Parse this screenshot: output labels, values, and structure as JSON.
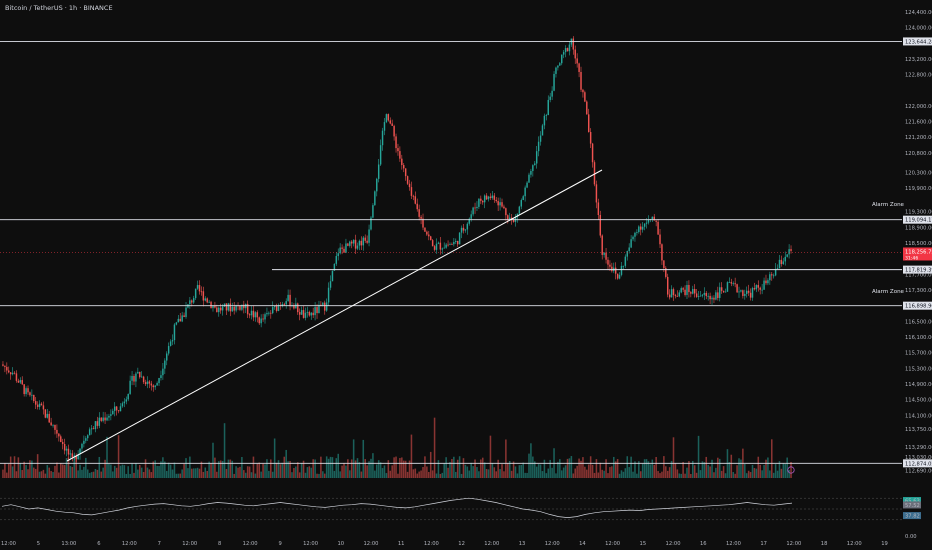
{
  "header": {
    "symbol": "Bitcoin / TetherUS",
    "sep1": " · ",
    "interval": "1h",
    "sep2": " · ",
    "exchange": "BINANCE"
  },
  "colors": {
    "background": "#0e0e0e",
    "up": "#26a69a",
    "down": "#ef5350",
    "level_line": "#e0e3eb",
    "rsi_line": "#d1d4dc",
    "current_price_badge": "#f23645"
  },
  "annotations": {
    "alarm_zone_upper": "Alarm Zone",
    "alarm_zone_lower": "Alarm Zone"
  },
  "chart_data": {
    "type": "candlestick",
    "price_axis": {
      "ticks": [
        "124,400.00",
        "124,000.00",
        "123,200.00",
        "122,800.00",
        "122,000.00",
        "121,600.00",
        "121,200.00",
        "120,800.00",
        "120,300.00",
        "119,900.00",
        "119,300.00",
        "118,900.00",
        "118,500.00",
        "117,700.00",
        "117,300.00",
        "116,500.00",
        "116,100.00",
        "115,700.00",
        "115,300.00",
        "114,900.00",
        "114,500.00",
        "114,100.00",
        "113,750.00",
        "113,290.00",
        "113,030.00",
        "112,690.00"
      ],
      "range": [
        112500,
        124600
      ]
    },
    "time_axis": {
      "ticks": [
        "12:00",
        "5",
        "13:00",
        "6",
        "12:00",
        "7",
        "12:00",
        "8",
        "12:00",
        "9",
        "12:00",
        "10",
        "12:00",
        "11",
        "12:00",
        "12",
        "12:00",
        "13",
        "12:00",
        "14",
        "12:00",
        "15",
        "12:00",
        "16",
        "12:00",
        "17",
        "12:00",
        "18",
        "12:00",
        "19"
      ]
    },
    "levels": [
      {
        "price": 123644.28,
        "label": "123,644.28"
      },
      {
        "price": 119094.17,
        "label": "119,094.17"
      },
      {
        "price": 117819.39,
        "label": "117,819.39"
      },
      {
        "price": 116898.96,
        "label": "116,898.96"
      },
      {
        "price": 112874.05,
        "label": "112,874.05"
      }
    ],
    "current_price": {
      "price": 118256.75,
      "label": "118,256.75",
      "countdown": "31:46"
    },
    "trendline": {
      "from_price": 112874.05,
      "to_price": 120300.0
    },
    "rsi": {
      "ticks": [
        "65.63",
        "57.52",
        "37.82",
        "0.00"
      ],
      "values": [
        55,
        58,
        54,
        50,
        52,
        49,
        46,
        44,
        43,
        40,
        39,
        42,
        45,
        48,
        52,
        55,
        57,
        59,
        60,
        58,
        56,
        55,
        57,
        60,
        62,
        61,
        59,
        57,
        56,
        58,
        60,
        62,
        60,
        58,
        56,
        54,
        53,
        55,
        57,
        58,
        60,
        59,
        57,
        55,
        53,
        52,
        54,
        57,
        60,
        63,
        66,
        68,
        70,
        68,
        65,
        62,
        58,
        54,
        50,
        48,
        45,
        40,
        36,
        34,
        36,
        40,
        43,
        45,
        46,
        47,
        48,
        47,
        49,
        50,
        51,
        52,
        53,
        54,
        55,
        56,
        57,
        58,
        60,
        62,
        60,
        58,
        57,
        59,
        61
      ]
    }
  }
}
